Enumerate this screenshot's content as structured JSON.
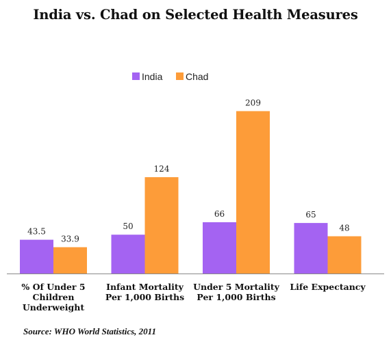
{
  "chart_data": {
    "type": "bar",
    "title": "India vs. Chad on Selected Health Measures",
    "categories": [
      [
        "% Of Under 5",
        "Children",
        "Underweight"
      ],
      [
        "Infant Mortality",
        "Per 1,000 Births"
      ],
      [
        "Under 5 Mortality",
        "Per 1,000 Births"
      ],
      [
        "Life Expectancy"
      ]
    ],
    "series": [
      {
        "name": "India",
        "color": "#a463f2",
        "values": [
          43.5,
          50,
          66,
          65
        ],
        "labels": [
          "43.5",
          "50",
          "66",
          "65"
        ]
      },
      {
        "name": "Chad",
        "color": "#fd9c39",
        "values": [
          33.9,
          124,
          209,
          48
        ],
        "labels": [
          "33.9",
          "124",
          "209",
          "48"
        ]
      }
    ],
    "ylim": [
      0,
      220
    ],
    "grid": false,
    "legend_position": "top-center",
    "source": "Source: WHO World Statistics, 2011"
  }
}
